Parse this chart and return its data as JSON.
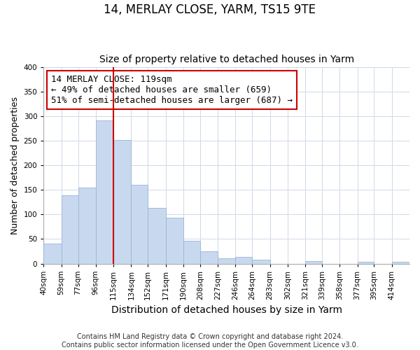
{
  "title": "14, MERLAY CLOSE, YARM, TS15 9TE",
  "subtitle": "Size of property relative to detached houses in Yarm",
  "xlabel": "Distribution of detached houses by size in Yarm",
  "ylabel": "Number of detached properties",
  "bin_labels": [
    "40sqm",
    "59sqm",
    "77sqm",
    "96sqm",
    "115sqm",
    "134sqm",
    "152sqm",
    "171sqm",
    "190sqm",
    "208sqm",
    "227sqm",
    "246sqm",
    "264sqm",
    "283sqm",
    "302sqm",
    "321sqm",
    "339sqm",
    "358sqm",
    "377sqm",
    "395sqm",
    "414sqm"
  ],
  "bin_edges": [
    40,
    59,
    77,
    96,
    115,
    134,
    152,
    171,
    190,
    208,
    227,
    246,
    264,
    283,
    302,
    321,
    339,
    358,
    377,
    395,
    414
  ],
  "bin_width": 19,
  "bar_heights": [
    40,
    139,
    155,
    292,
    251,
    161,
    114,
    93,
    46,
    25,
    10,
    13,
    8,
    0,
    0,
    5,
    0,
    0,
    4,
    0,
    4
  ],
  "bar_color": "#c8d9ef",
  "bar_edge_color": "#9ab5d5",
  "property_line_x": 115,
  "property_line_color": "#cc0000",
  "annotation_text": "14 MERLAY CLOSE: 119sqm\n← 49% of detached houses are smaller (659)\n51% of semi-detached houses are larger (687) →",
  "annotation_box_color": "#ffffff",
  "annotation_box_edge_color": "#cc0000",
  "ylim": [
    0,
    400
  ],
  "yticks": [
    0,
    50,
    100,
    150,
    200,
    250,
    300,
    350,
    400
  ],
  "footer_text": "Contains HM Land Registry data © Crown copyright and database right 2024.\nContains public sector information licensed under the Open Government Licence v3.0.",
  "title_fontsize": 12,
  "subtitle_fontsize": 10,
  "xlabel_fontsize": 10,
  "ylabel_fontsize": 9,
  "tick_fontsize": 7.5,
  "annotation_fontsize": 9,
  "footer_fontsize": 7
}
